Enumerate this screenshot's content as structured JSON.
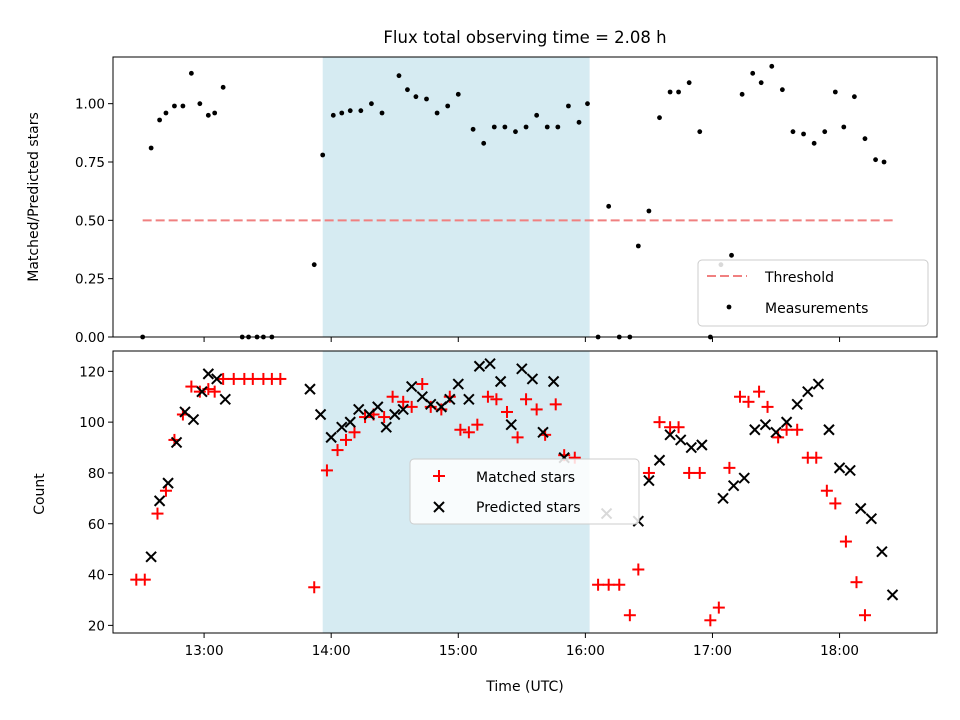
{
  "chart_data": [
    {
      "type": "scatter",
      "title": "Flux total observing time = 2.08 h",
      "ylabel": "Matched/Predicted stars",
      "xlim": [
        "12:17",
        "18:46"
      ],
      "ylim": [
        0,
        1.2
      ],
      "yticks": [
        0.0,
        0.25,
        0.5,
        0.75,
        1.0
      ],
      "ytick_labels": [
        "0.00",
        "0.25",
        "0.50",
        "0.75",
        "1.00"
      ],
      "shaded_span": [
        "13:56",
        "16:02"
      ],
      "shaded_color": "#add8e6",
      "threshold": {
        "name": "Threshold",
        "value": 0.5,
        "x_range": [
          "12:31",
          "18:26"
        ],
        "color": "#f08080"
      },
      "legend_position": "lower right",
      "series": [
        {
          "name": "Measurements",
          "color": "#000000",
          "marker": "dot",
          "points": [
            [
              "12:31",
              0.0
            ],
            [
              "12:35",
              0.81
            ],
            [
              "12:39",
              0.93
            ],
            [
              "12:42",
              0.96
            ],
            [
              "12:46",
              0.99
            ],
            [
              "12:50",
              0.99
            ],
            [
              "12:54",
              1.13
            ],
            [
              "12:58",
              1.0
            ],
            [
              "13:02",
              0.95
            ],
            [
              "13:05",
              0.96
            ],
            [
              "13:09",
              1.07
            ],
            [
              "13:18",
              0.0
            ],
            [
              "13:21",
              0.0
            ],
            [
              "13:25",
              0.0
            ],
            [
              "13:28",
              0.0
            ],
            [
              "13:32",
              0.0
            ],
            [
              "13:52",
              0.31
            ],
            [
              "13:56",
              0.78
            ],
            [
              "14:01",
              0.95
            ],
            [
              "14:05",
              0.96
            ],
            [
              "14:09",
              0.97
            ],
            [
              "14:14",
              0.97
            ],
            [
              "14:19",
              1.0
            ],
            [
              "14:24",
              0.96
            ],
            [
              "14:32",
              1.12
            ],
            [
              "14:36",
              1.06
            ],
            [
              "14:40",
              1.03
            ],
            [
              "14:45",
              1.02
            ],
            [
              "14:50",
              0.96
            ],
            [
              "14:55",
              0.99
            ],
            [
              "15:00",
              1.04
            ],
            [
              "15:07",
              0.89
            ],
            [
              "15:12",
              0.83
            ],
            [
              "15:17",
              0.9
            ],
            [
              "15:22",
              0.9
            ],
            [
              "15:27",
              0.88
            ],
            [
              "15:32",
              0.9
            ],
            [
              "15:37",
              0.95
            ],
            [
              "15:42",
              0.9
            ],
            [
              "15:47",
              0.9
            ],
            [
              "15:52",
              0.99
            ],
            [
              "15:57",
              0.92
            ],
            [
              "16:01",
              1.0
            ],
            [
              "16:06",
              0.0
            ],
            [
              "16:11",
              0.56
            ],
            [
              "16:16",
              0.0
            ],
            [
              "16:21",
              0.0
            ],
            [
              "16:25",
              0.39
            ],
            [
              "16:30",
              0.54
            ],
            [
              "16:35",
              0.94
            ],
            [
              "16:40",
              1.05
            ],
            [
              "16:44",
              1.05
            ],
            [
              "16:49",
              1.09
            ],
            [
              "16:54",
              0.88
            ],
            [
              "16:59",
              0.0
            ],
            [
              "17:04",
              0.31
            ],
            [
              "17:09",
              0.35
            ],
            [
              "17:14",
              1.04
            ],
            [
              "17:19",
              1.13
            ],
            [
              "17:23",
              1.09
            ],
            [
              "17:28",
              1.16
            ],
            [
              "17:33",
              1.06
            ],
            [
              "17:38",
              0.88
            ],
            [
              "17:43",
              0.87
            ],
            [
              "17:48",
              0.83
            ],
            [
              "17:53",
              0.88
            ],
            [
              "17:58",
              1.05
            ],
            [
              "18:02",
              0.9
            ],
            [
              "18:07",
              1.03
            ],
            [
              "18:12",
              0.85
            ],
            [
              "18:17",
              0.76
            ],
            [
              "18:21",
              0.75
            ]
          ]
        }
      ]
    },
    {
      "type": "scatter",
      "xlabel": "Time (UTC)",
      "ylabel": "Count",
      "xlim": [
        "12:17",
        "18:46"
      ],
      "ylim": [
        17,
        128
      ],
      "xticks": [
        "13:00",
        "14:00",
        "15:00",
        "16:00",
        "17:00",
        "18:00"
      ],
      "yticks": [
        20,
        40,
        60,
        80,
        100,
        120
      ],
      "ytick_labels": [
        "20",
        "40",
        "60",
        "80",
        "100",
        "120"
      ],
      "shaded_span": [
        "13:56",
        "16:02"
      ],
      "shaded_color": "#add8e6",
      "legend_position": "center",
      "series": [
        {
          "name": "Matched stars",
          "color": "#ff0000",
          "marker": "+",
          "points": [
            [
              "12:28",
              38
            ],
            [
              "12:32",
              38
            ],
            [
              "12:38",
              64
            ],
            [
              "12:42",
              73
            ],
            [
              "12:46",
              93
            ],
            [
              "12:50",
              103
            ],
            [
              "12:54",
              114
            ],
            [
              "12:58",
              112
            ],
            [
              "13:02",
              113
            ],
            [
              "13:05",
              112
            ],
            [
              "13:09",
              117
            ],
            [
              "13:14",
              117
            ],
            [
              "13:19",
              117
            ],
            [
              "13:23",
              117
            ],
            [
              "13:28",
              117
            ],
            [
              "13:32",
              117
            ],
            [
              "13:36",
              117
            ],
            [
              "13:52",
              35
            ],
            [
              "13:58",
              81
            ],
            [
              "14:03",
              89
            ],
            [
              "14:07",
              93
            ],
            [
              "14:11",
              96
            ],
            [
              "14:16",
              102
            ],
            [
              "14:20",
              103
            ],
            [
              "14:25",
              102
            ],
            [
              "14:29",
              110
            ],
            [
              "14:34",
              108
            ],
            [
              "14:38",
              106
            ],
            [
              "14:43",
              115
            ],
            [
              "14:47",
              106
            ],
            [
              "14:52",
              105
            ],
            [
              "14:56",
              110
            ],
            [
              "15:01",
              97
            ],
            [
              "15:05",
              96
            ],
            [
              "15:09",
              99
            ],
            [
              "15:14",
              110
            ],
            [
              "15:18",
              109
            ],
            [
              "15:23",
              104
            ],
            [
              "15:28",
              94
            ],
            [
              "15:32",
              109
            ],
            [
              "15:37",
              105
            ],
            [
              "15:41",
              95
            ],
            [
              "15:46",
              107
            ],
            [
              "15:50",
              87
            ],
            [
              "15:55",
              86
            ],
            [
              "16:06",
              36
            ],
            [
              "16:11",
              36
            ],
            [
              "16:16",
              36
            ],
            [
              "16:21",
              24
            ],
            [
              "16:25",
              42
            ],
            [
              "16:30",
              80
            ],
            [
              "16:35",
              100
            ],
            [
              "16:40",
              98
            ],
            [
              "16:44",
              98
            ],
            [
              "16:49",
              80
            ],
            [
              "16:54",
              80
            ],
            [
              "16:59",
              22
            ],
            [
              "17:03",
              27
            ],
            [
              "17:08",
              82
            ],
            [
              "17:13",
              110
            ],
            [
              "17:17",
              108
            ],
            [
              "17:22",
              112
            ],
            [
              "17:26",
              106
            ],
            [
              "17:31",
              94
            ],
            [
              "17:35",
              97
            ],
            [
              "17:40",
              97
            ],
            [
              "17:45",
              86
            ],
            [
              "17:49",
              86
            ],
            [
              "17:54",
              73
            ],
            [
              "17:58",
              68
            ],
            [
              "18:03",
              53
            ],
            [
              "18:08",
              37
            ],
            [
              "18:12",
              24
            ]
          ]
        },
        {
          "name": "Predicted stars",
          "color": "#000000",
          "marker": "x",
          "points": [
            [
              "12:35",
              47
            ],
            [
              "12:39",
              69
            ],
            [
              "12:43",
              76
            ],
            [
              "12:47",
              92
            ],
            [
              "12:51",
              104
            ],
            [
              "12:55",
              101
            ],
            [
              "12:59",
              112
            ],
            [
              "13:02",
              119
            ],
            [
              "13:06",
              117
            ],
            [
              "13:10",
              109
            ],
            [
              "13:50",
              113
            ],
            [
              "13:55",
              103
            ],
            [
              "14:00",
              94
            ],
            [
              "14:05",
              98
            ],
            [
              "14:09",
              100
            ],
            [
              "14:13",
              105
            ],
            [
              "14:18",
              103
            ],
            [
              "14:22",
              106
            ],
            [
              "14:26",
              98
            ],
            [
              "14:30",
              103
            ],
            [
              "14:34",
              105
            ],
            [
              "14:38",
              114
            ],
            [
              "14:43",
              110
            ],
            [
              "14:47",
              107
            ],
            [
              "14:52",
              106
            ],
            [
              "14:56",
              109
            ],
            [
              "15:00",
              115
            ],
            [
              "15:05",
              109
            ],
            [
              "15:10",
              122
            ],
            [
              "15:15",
              123
            ],
            [
              "15:20",
              116
            ],
            [
              "15:25",
              99
            ],
            [
              "15:30",
              121
            ],
            [
              "15:35",
              117
            ],
            [
              "15:40",
              96
            ],
            [
              "15:45",
              116
            ],
            [
              "15:50",
              86
            ],
            [
              "16:10",
              64
            ],
            [
              "16:25",
              61
            ],
            [
              "16:30",
              77
            ],
            [
              "16:35",
              85
            ],
            [
              "16:40",
              95
            ],
            [
              "16:45",
              93
            ],
            [
              "16:50",
              90
            ],
            [
              "16:55",
              91
            ],
            [
              "17:05",
              70
            ],
            [
              "17:10",
              75
            ],
            [
              "17:15",
              78
            ],
            [
              "17:20",
              97
            ],
            [
              "17:25",
              99
            ],
            [
              "17:30",
              96
            ],
            [
              "17:35",
              100
            ],
            [
              "17:40",
              107
            ],
            [
              "17:45",
              112
            ],
            [
              "17:50",
              115
            ],
            [
              "17:55",
              97
            ],
            [
              "18:00",
              82
            ],
            [
              "18:05",
              81
            ],
            [
              "18:10",
              66
            ],
            [
              "18:15",
              62
            ],
            [
              "18:20",
              49
            ],
            [
              "18:25",
              32
            ]
          ]
        }
      ]
    }
  ]
}
